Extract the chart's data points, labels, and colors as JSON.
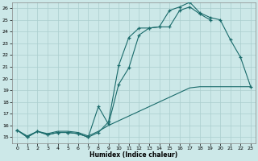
{
  "xlabel": "Humidex (Indice chaleur)",
  "ylabel": "",
  "bg_color": "#cce8e8",
  "grid_color": "#aacece",
  "line_color": "#1a6b6b",
  "xlim": [
    -0.5,
    23.5
  ],
  "ylim": [
    14.5,
    26.5
  ],
  "xticks": [
    0,
    1,
    2,
    3,
    4,
    5,
    6,
    7,
    8,
    9,
    10,
    11,
    12,
    13,
    14,
    15,
    16,
    17,
    18,
    19,
    20,
    21,
    22,
    23
  ],
  "yticks": [
    15,
    16,
    17,
    18,
    19,
    20,
    21,
    22,
    23,
    24,
    25,
    26
  ],
  "line1_x": [
    0,
    1,
    2,
    3,
    4,
    5,
    6,
    7,
    8,
    9,
    10,
    11,
    12,
    13,
    14,
    15,
    16,
    17,
    18,
    19,
    20,
    21,
    22,
    23
  ],
  "line1_y": [
    15.6,
    15.0,
    15.5,
    15.2,
    15.4,
    15.4,
    15.3,
    15.0,
    15.4,
    16.3,
    21.1,
    23.5,
    24.3,
    24.3,
    24.4,
    25.8,
    26.1,
    26.5,
    25.6,
    25.2,
    25.0,
    23.3,
    21.8,
    19.3
  ],
  "line2_x": [
    0,
    1,
    2,
    3,
    4,
    5,
    6,
    7,
    8,
    9,
    10,
    11,
    12,
    13,
    14,
    15,
    16,
    17,
    18,
    19
  ],
  "line2_y": [
    15.6,
    15.0,
    15.5,
    15.2,
    15.4,
    15.4,
    15.3,
    15.0,
    17.6,
    16.1,
    19.5,
    20.9,
    23.7,
    24.3,
    24.4,
    24.4,
    25.8,
    26.1,
    25.5,
    25.0
  ],
  "line3_x": [
    0,
    1,
    2,
    3,
    4,
    5,
    6,
    7,
    8,
    9,
    10,
    11,
    12,
    13,
    14,
    15,
    16,
    17,
    18,
    19,
    20,
    21,
    22,
    23
  ],
  "line3_y": [
    15.6,
    15.1,
    15.5,
    15.3,
    15.5,
    15.5,
    15.4,
    15.1,
    15.5,
    16.0,
    16.4,
    16.8,
    17.2,
    17.6,
    18.0,
    18.4,
    18.8,
    19.2,
    19.3,
    19.3,
    19.3,
    19.3,
    19.3,
    19.3
  ]
}
